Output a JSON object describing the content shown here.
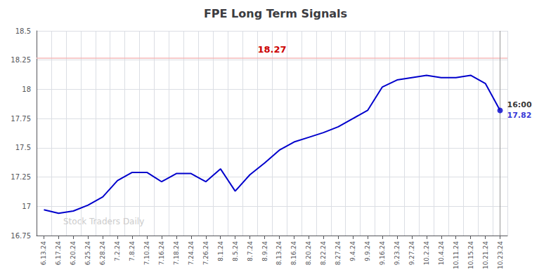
{
  "chart_data": {
    "type": "line",
    "title": "FPE Long Term Signals",
    "categories": [
      "6.13.24",
      "6.17.24",
      "6.20.24",
      "6.25.24",
      "6.28.24",
      "7.2.24",
      "7.8.24",
      "7.10.24",
      "7.16.24",
      "7.18.24",
      "7.24.24",
      "7.26.24",
      "8.1.24",
      "8.5.24",
      "8.7.24",
      "8.9.24",
      "8.13.24",
      "8.16.24",
      "8.20.24",
      "8.22.24",
      "8.27.24",
      "9.4.24",
      "9.9.24",
      "9.16.24",
      "9.23.24",
      "9.27.24",
      "10.2.24",
      "10.4.24",
      "10.11.24",
      "10.15.24",
      "10.21.24",
      "10.23.24"
    ],
    "values": [
      16.97,
      16.94,
      16.96,
      17.01,
      17.08,
      17.22,
      17.29,
      17.29,
      17.21,
      17.28,
      17.28,
      17.21,
      17.32,
      17.13,
      17.27,
      17.37,
      17.48,
      17.55,
      17.59,
      17.63,
      17.68,
      17.75,
      17.82,
      18.02,
      18.08,
      18.1,
      18.12,
      18.1,
      18.1,
      18.12,
      18.05,
      17.82
    ],
    "color": "#0000cc",
    "ylim": [
      16.75,
      18.5
    ],
    "yticks": [
      16.75,
      17,
      17.25,
      17.5,
      17.75,
      18,
      18.25,
      18.5
    ],
    "grid": true,
    "annotations": [
      {
        "text": "18.27",
        "y": 18.27,
        "color": "#cc0000"
      },
      {
        "text": "16:00",
        "x": "10.23.24"
      },
      {
        "text": "17.82",
        "x": "10.23.24",
        "y": 17.82,
        "color": "#0000cc"
      },
      {
        "text": "Stock Traders Daily",
        "color": "#cccccc"
      }
    ]
  }
}
